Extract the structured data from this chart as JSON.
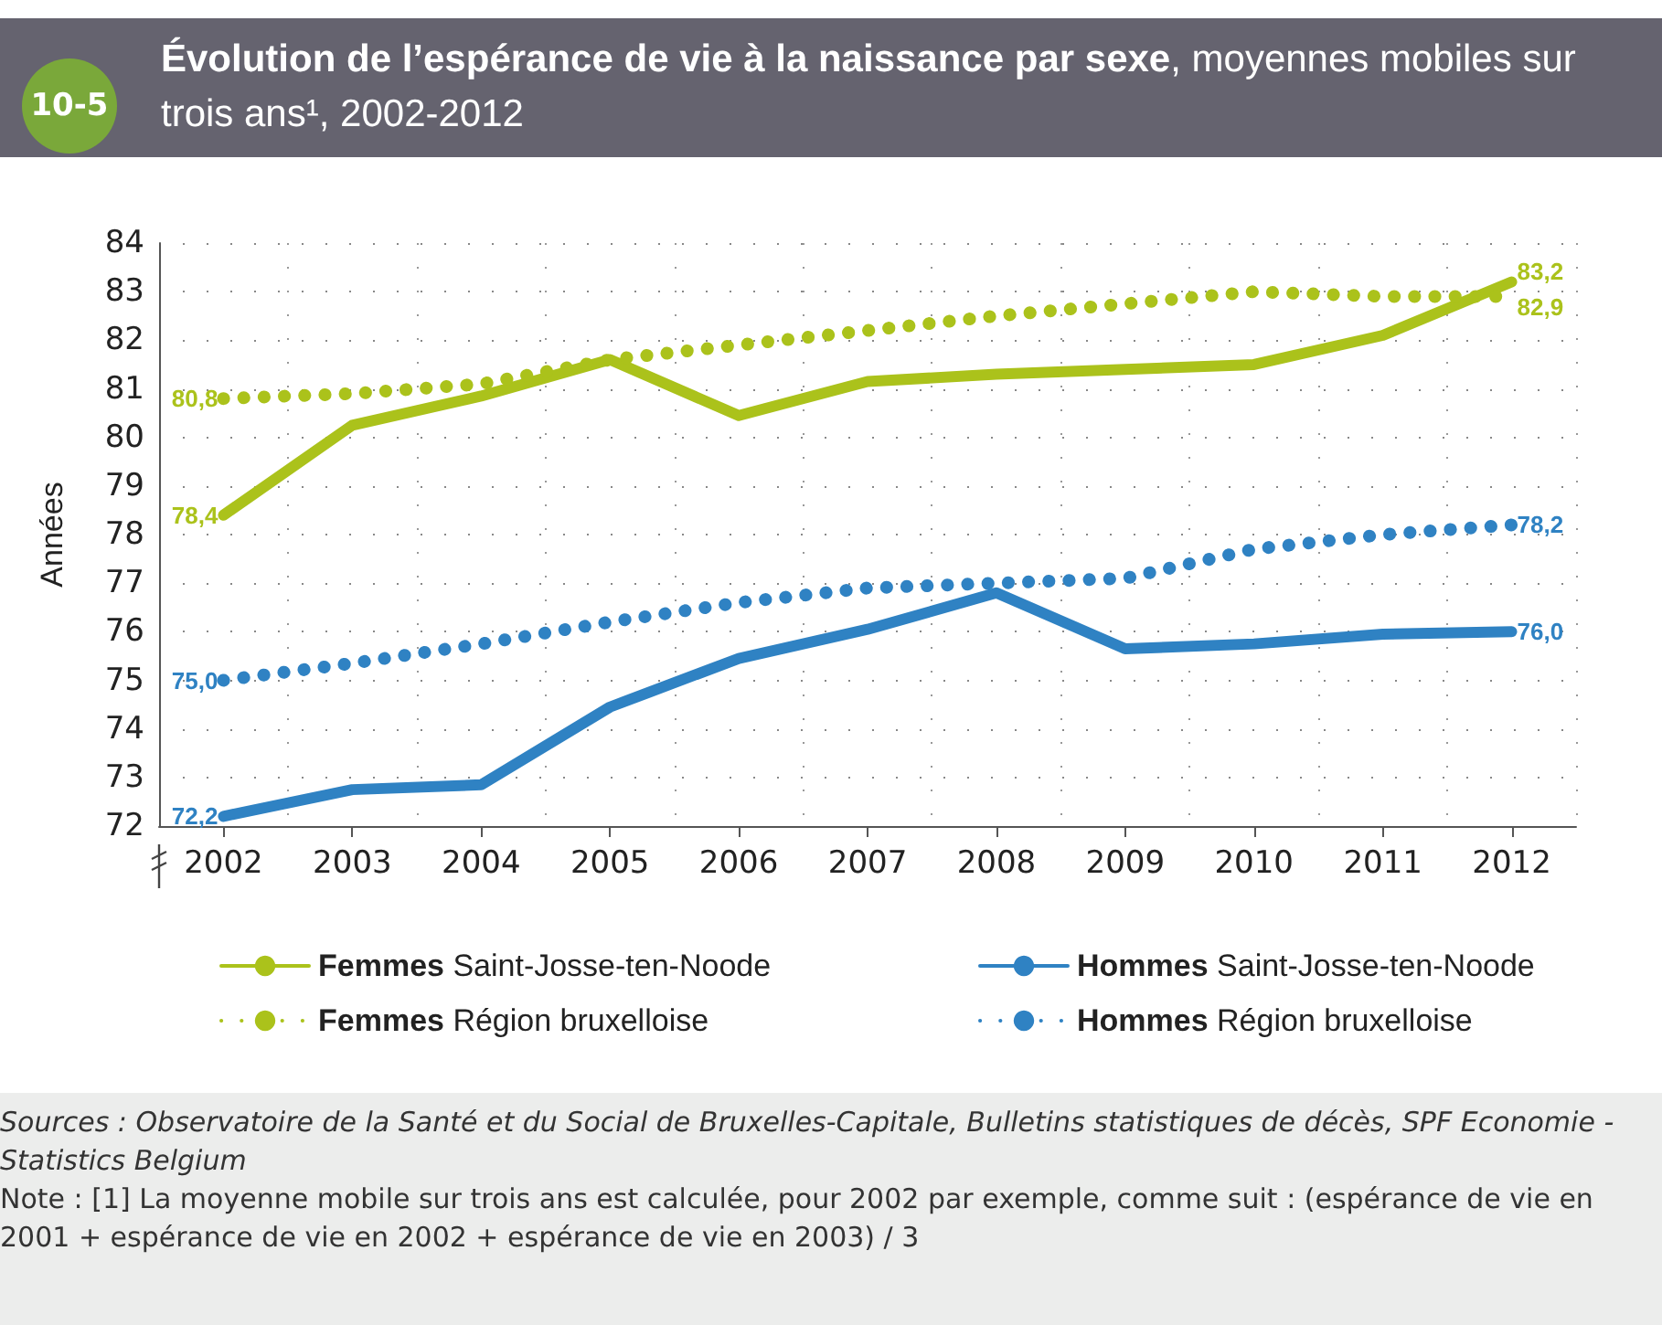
{
  "chart_data": {
    "type": "line",
    "title": "Évolution de l’espérance de vie à la naissance par sexe",
    "subtitle": ", moyennes mobiles sur trois ans¹, 2002-2012",
    "ylabel": "Années",
    "categories": [
      "2002",
      "2003",
      "2004",
      "2005",
      "2006",
      "2007",
      "2008",
      "2009",
      "2010",
      "2011",
      "2012"
    ],
    "series": [
      {
        "name": "Femmes Saint-Josse-ten-Noode",
        "color": "#abc21b",
        "line_style": "solid",
        "values": [
          78.4,
          80.25,
          80.85,
          81.6,
          80.45,
          81.15,
          81.3,
          81.4,
          81.5,
          82.1,
          83.2
        ],
        "value_labels": [
          "78,4",
          null,
          null,
          null,
          null,
          null,
          null,
          null,
          null,
          null,
          "83,2"
        ]
      },
      {
        "name": "Hommes Saint-Josse-ten-Noode",
        "color": "#2f82c3",
        "line_style": "solid",
        "values": [
          72.2,
          72.75,
          72.85,
          74.45,
          75.45,
          76.05,
          76.8,
          75.65,
          75.75,
          75.95,
          76.0
        ],
        "value_labels": [
          "72,2",
          null,
          null,
          null,
          null,
          null,
          null,
          null,
          null,
          null,
          "76,0"
        ]
      },
      {
        "name": "Femmes Région bruxelloise",
        "color": "#abc21b",
        "line_style": "dotted",
        "values": [
          80.8,
          80.9,
          81.1,
          81.6,
          81.9,
          82.2,
          82.5,
          82.75,
          83.0,
          82.9,
          82.9
        ],
        "value_labels": [
          "80,8",
          null,
          null,
          null,
          null,
          null,
          null,
          null,
          null,
          null,
          "82,9"
        ]
      },
      {
        "name": "Hommes Région bruxelloise",
        "color": "#2f82c3",
        "line_style": "dotted",
        "values": [
          75.0,
          75.35,
          75.75,
          76.2,
          76.6,
          76.9,
          77.0,
          77.1,
          77.7,
          78.0,
          78.2
        ],
        "value_labels": [
          "75,0",
          null,
          null,
          null,
          null,
          null,
          null,
          null,
          null,
          null,
          "78,2"
        ]
      }
    ],
    "ylim": [
      72,
      84
    ],
    "yticks": [
      72,
      73,
      74,
      75,
      76,
      77,
      78,
      79,
      80,
      81,
      82,
      83,
      84
    ],
    "grid": true,
    "legend": "bottom",
    "marker": "none",
    "annotations": [
      "10-5",
      "Sources : Observatoire de la Santé et du Social de Bruxelles-Capitale, Bulletins statistiques de décès, SPF Economie - Statistics Belgium",
      "Note : [1] La moyenne mobile sur trois ans est calculée, pour 2002 par exemple, comme suit : (espérance de vie en 2001 + espérance de vie en 2002 + espérance de vie en 2003) / 3"
    ]
  }
}
